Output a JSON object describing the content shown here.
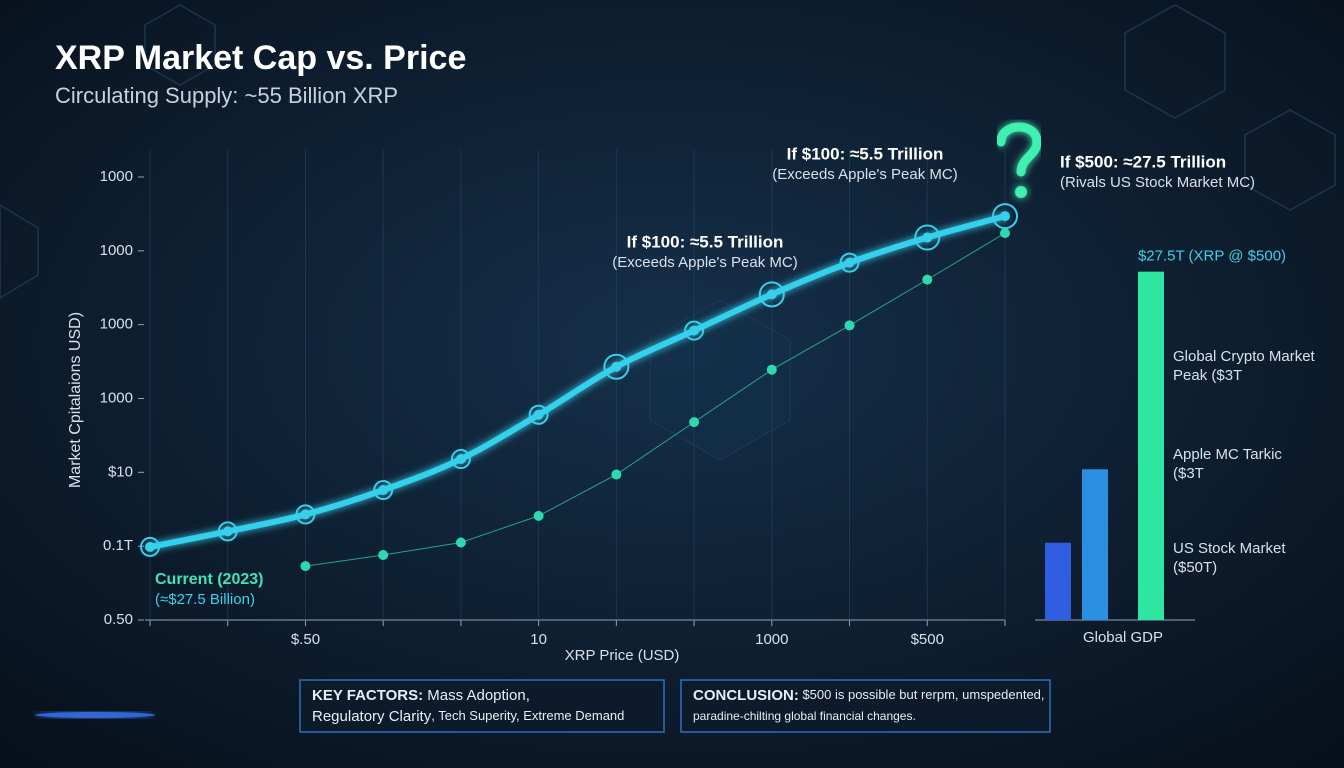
{
  "title": "XRP Market Cap vs. Price",
  "subtitle": "Circulating Supply: ~55 Billion XRP",
  "chart_data": [
    {
      "type": "line",
      "ylabel": "Market Cpitalaions USD)",
      "xlabel": "XRP Price (USD)",
      "categories": [
        null,
        null,
        "$.50",
        null,
        null,
        "10",
        null,
        null,
        "1000",
        null,
        "$500",
        null
      ],
      "ylim": [
        0,
        6
      ],
      "yticks": [
        {
          "value": 0,
          "label": "0.50"
        },
        {
          "value": 1,
          "label": "0.1T"
        },
        {
          "value": 2,
          "label": "$10"
        },
        {
          "value": 3,
          "label": "1000"
        },
        {
          "value": 4,
          "label": "1000"
        },
        {
          "value": 5,
          "label": "1000"
        },
        {
          "value": 6,
          "label": "1000"
        }
      ],
      "grid": true,
      "series": [
        {
          "name": "Market cap curve",
          "color": "#36d0ec",
          "values": [
            0.99,
            1.2,
            1.43,
            1.76,
            2.18,
            2.78,
            3.43,
            3.92,
            4.41,
            4.84,
            5.18,
            5.47
          ]
        },
        {
          "name": "Price points",
          "color": "#2fd9b0",
          "values": [
            null,
            null,
            0.73,
            0.88,
            1.05,
            1.41,
            1.97,
            2.68,
            3.39,
            3.99,
            4.61,
            5.24
          ]
        }
      ],
      "annotations": [
        {
          "lines": [
            "Current (2023)",
            "(≈$27.5 Billion)"
          ]
        },
        {
          "lines": [
            "If $100: ≈5.5 Trillion",
            "(Exceeds Apple's Peak MC)"
          ]
        },
        {
          "lines": [
            "If $100: ≈5.5 Trillion",
            "(Exceeds Apple's Peak MC)"
          ]
        },
        {
          "lines": [
            "If $500: ≈27.5 Trillion",
            "(Rivals US Stock Market MC)"
          ]
        }
      ]
    },
    {
      "type": "bar",
      "xlabel": "Global GDP",
      "ylim": [
        0,
        30
      ],
      "values": [
        6.1,
        11.9,
        27.5
      ],
      "value_labels": [
        null,
        null,
        "$27.5T (XRP @ $500)"
      ],
      "colors": [
        "#2f5fe0",
        "#2a8fe0",
        "#2ee6a0"
      ],
      "side_labels": [
        [
          "Global Crypto Market",
          "Peak ($3T"
        ],
        [
          "Apple MC Tarkic",
          "($3T"
        ],
        [
          "US Stock Market",
          "($50T)"
        ]
      ]
    }
  ],
  "panels": [
    {
      "lines": [
        [
          "KEY FACTORS:",
          " Mass Adoption,"
        ],
        [
          "Regulatory Clarity",
          ", Tech Superity, Extreme Demand"
        ]
      ]
    },
    {
      "lines": [
        [
          "CONCLUSION:",
          " $500 is possible but rerpm, umspedented,"
        ],
        [
          "paradine-chilting global financial changes."
        ]
      ]
    }
  ]
}
